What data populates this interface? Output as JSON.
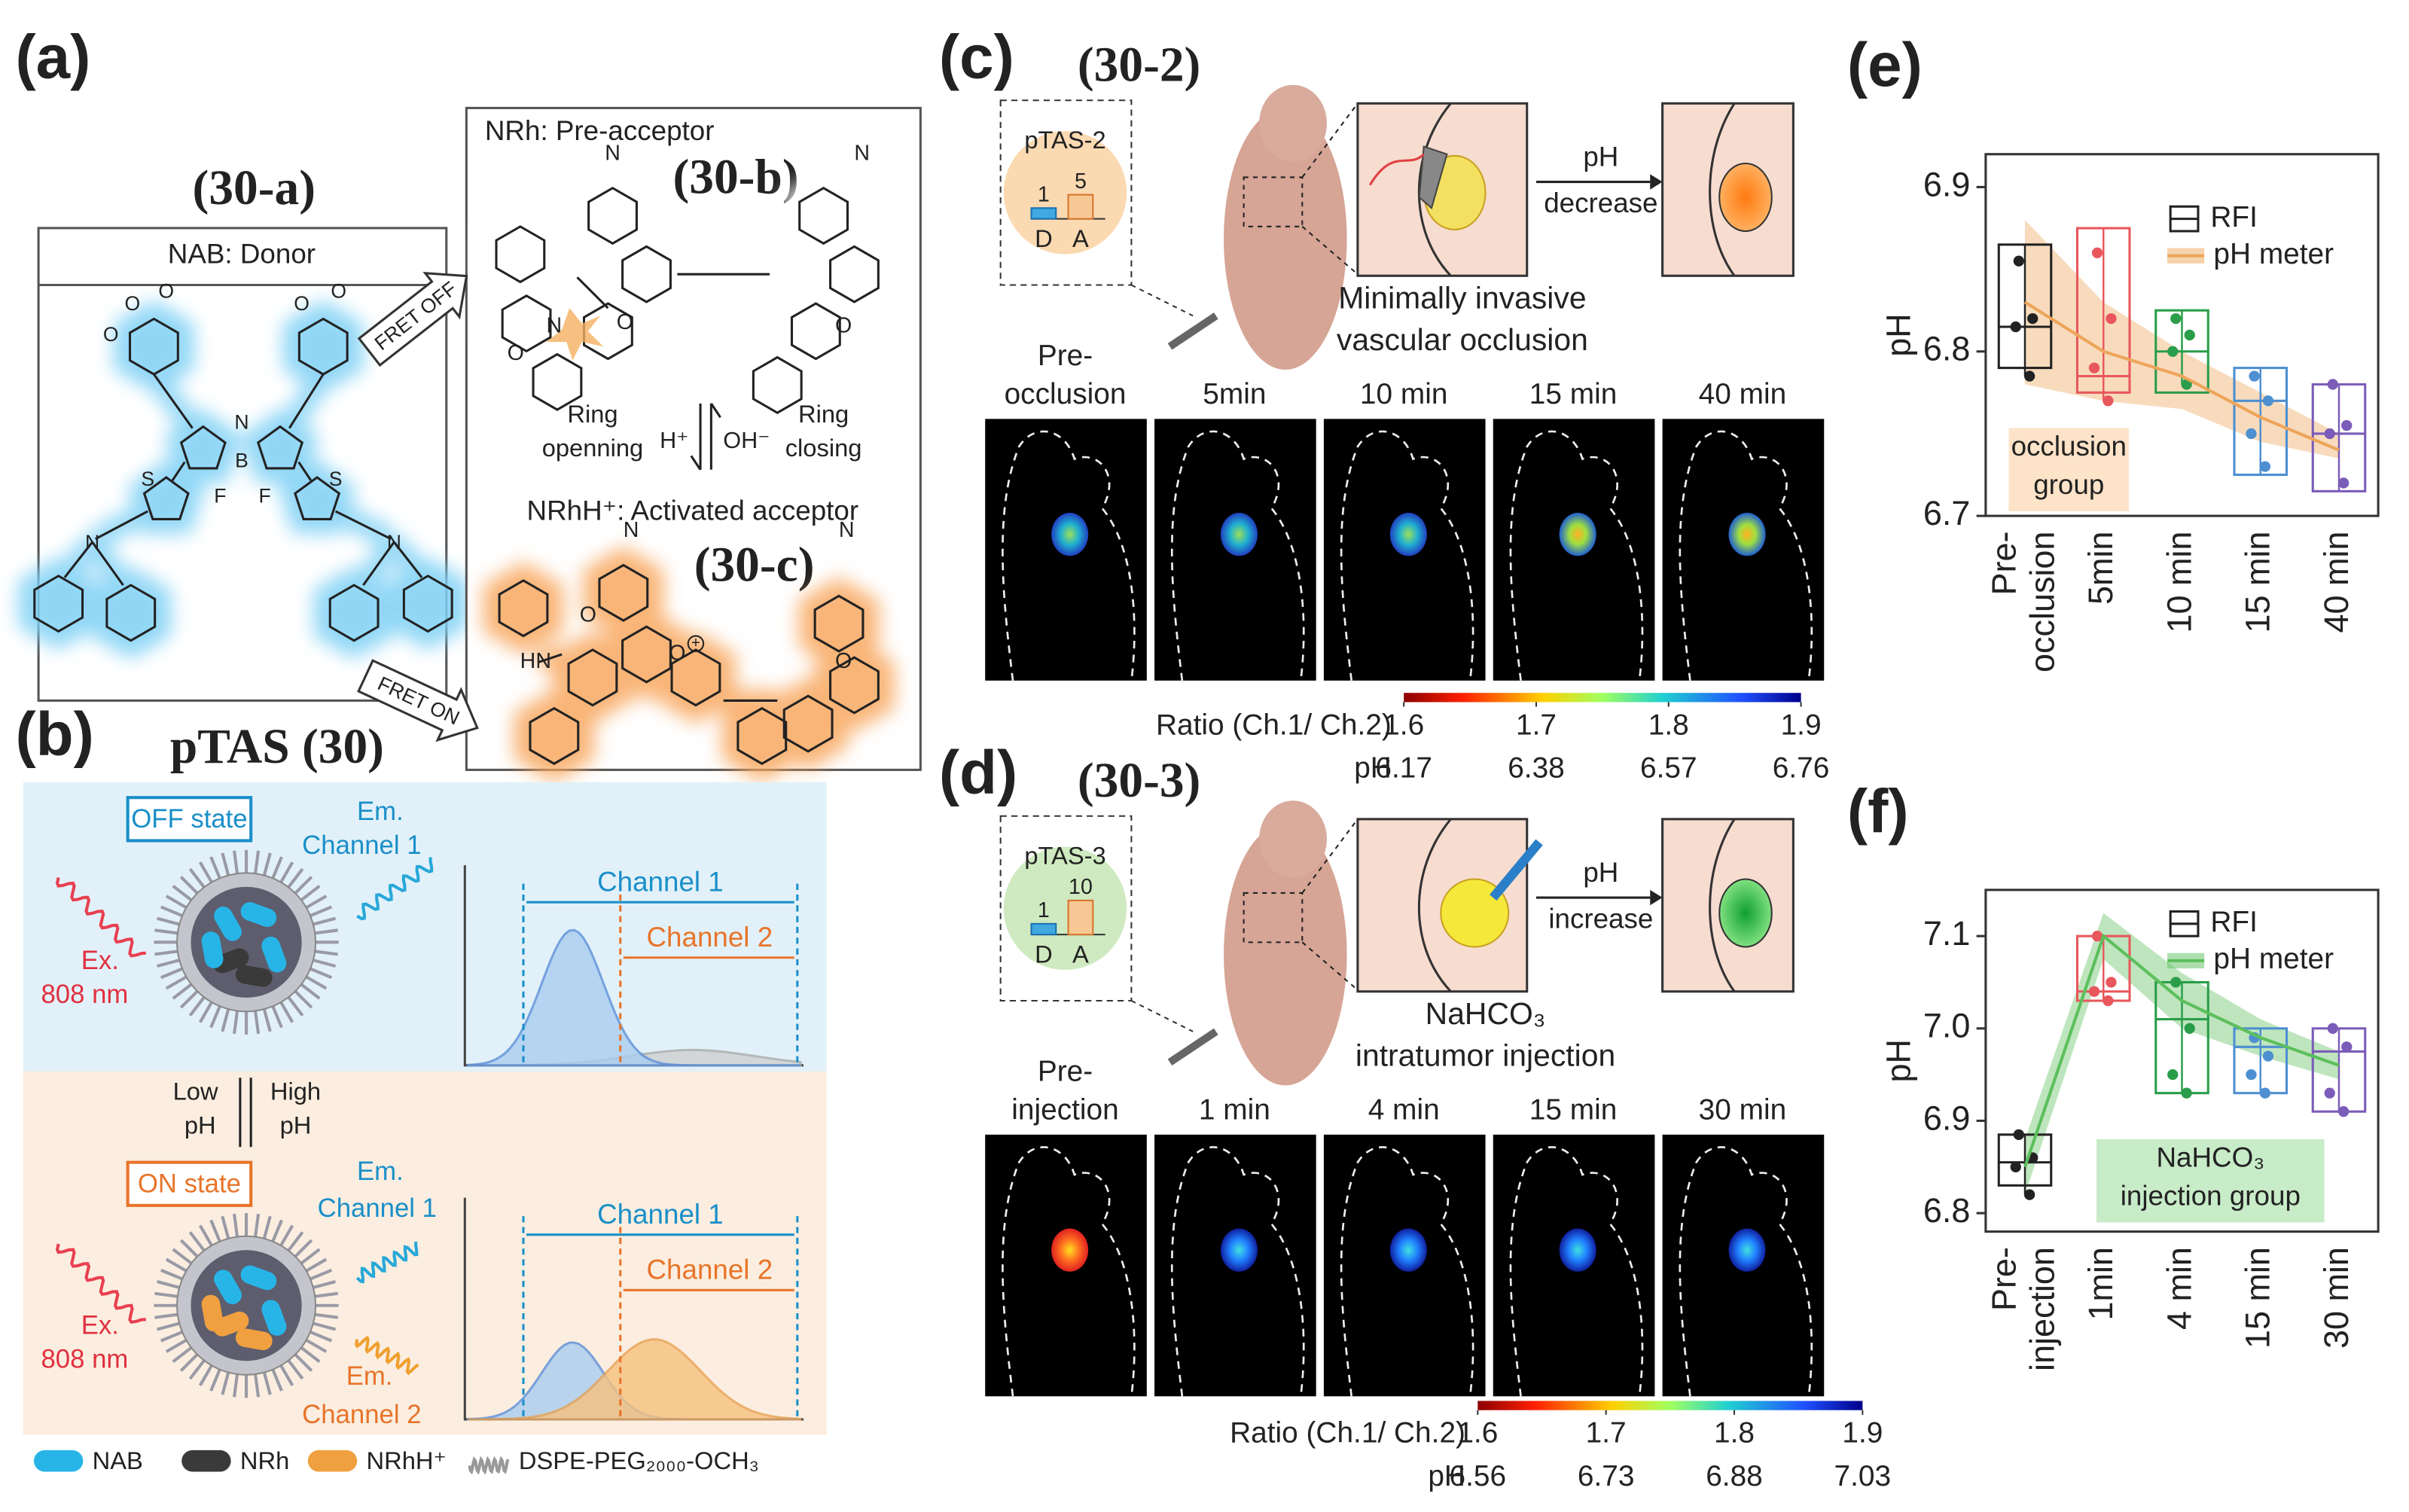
{
  "panel_a": {
    "label": "(a)",
    "tag": "(30-a)",
    "donor_title": "NAB: Donor",
    "donor_atoms": [
      "N",
      "B",
      "F",
      "F",
      "S",
      "S",
      "N",
      "N",
      "O",
      "O",
      "O",
      "O",
      "O",
      "O"
    ],
    "acceptor_title": "NRh: Pre-acceptor",
    "tag_b": "(30-b)",
    "pre_atoms": [
      "N",
      "N",
      "O",
      "O",
      "N",
      "O"
    ],
    "fret_off": "FRET OFF",
    "ring_opening": [
      "Ring",
      "openning"
    ],
    "acid": "H⁺",
    "base": "OH⁻",
    "ring_closing": [
      "Ring",
      "closing"
    ],
    "activated_title": "NRhH⁺: Activated acceptor",
    "tag_c": "(30-c)",
    "act_atoms": [
      "N",
      "HN",
      "O",
      "O",
      "N",
      "O"
    ],
    "charge": "+",
    "fret_on": "FRET ON"
  },
  "panel_b": {
    "label": "(b)",
    "title": "pTAS (30)",
    "off_state": "OFF state",
    "on_state": "ON state",
    "em1": [
      "Em.",
      "Channel 1"
    ],
    "em2": [
      "Em.",
      "Channel 2"
    ],
    "ex": [
      "Ex.",
      "808 nm"
    ],
    "low": [
      "Low",
      "pH"
    ],
    "high": [
      "High",
      "pH"
    ],
    "channel_1": "Channel 1",
    "channel_2": "Channel 2",
    "legend": [
      "NAB",
      "NRh",
      "NRhH⁺",
      "DSPE-PEG₂₀₀₀-OCH₃"
    ]
  },
  "panel_c": {
    "label": "(c)",
    "tag": "(30-2)",
    "probe": "pTAS-2",
    "ratio": [
      {
        "name": "D",
        "value": 1
      },
      {
        "name": "A",
        "value": 5
      }
    ],
    "arrow": [
      "pH",
      "decrease"
    ],
    "caption": [
      "Minimally invasive",
      "vascular occlusion"
    ],
    "frames": [
      [
        "Pre-",
        "occlusion"
      ],
      [
        "5min"
      ],
      [
        "10 min"
      ],
      [
        "15 min"
      ],
      [
        "40 min"
      ]
    ],
    "colorbar": {
      "title": "Ratio (Ch.1/ Ch.2)",
      "lim": [
        1.6,
        1.9
      ],
      "ticks": [
        1.6,
        1.7,
        1.8,
        1.9
      ],
      "ph_label": "pH",
      "ph": [
        6.17,
        6.38,
        6.57,
        6.76
      ]
    }
  },
  "panel_d": {
    "label": "(d)",
    "tag": "(30-3)",
    "probe": "pTAS-3",
    "ratio": [
      {
        "name": "D",
        "value": 1
      },
      {
        "name": "A",
        "value": 10
      }
    ],
    "arrow": [
      "pH",
      "increase"
    ],
    "caption": [
      "NaHCO₃",
      "intratumor injection"
    ],
    "frames": [
      [
        "Pre-",
        "injection"
      ],
      [
        "1 min"
      ],
      [
        "4 min"
      ],
      [
        "15 min"
      ],
      [
        "30 min"
      ]
    ],
    "colorbar": {
      "title": "Ratio (Ch.1/ Ch.2)",
      "lim": [
        1.6,
        1.9
      ],
      "ticks": [
        1.6,
        1.7,
        1.8,
        1.9
      ],
      "ph_label": "pH",
      "ph": [
        6.56,
        6.73,
        6.88,
        7.03
      ]
    }
  },
  "chart_data": [
    {
      "type": "box",
      "panel_label": "(e)",
      "y_label": "pH",
      "categories": [
        [
          "Pre-",
          "occlusion"
        ],
        [
          "5min"
        ],
        [
          "10 min"
        ],
        [
          "15 min"
        ],
        [
          "40 min"
        ]
      ],
      "ylim": [
        6.7,
        6.92
      ],
      "yticks": [
        6.7,
        6.8,
        6.9
      ],
      "series": [
        {
          "name": "RFI",
          "color": "#222222",
          "box_colors": [
            "#222222",
            "#e8575c",
            "#2a9d4a",
            "#4d8fd1",
            "#7b5cb8"
          ],
          "min": [
            6.785,
            6.77,
            6.78,
            6.725,
            6.715
          ],
          "q1": [
            6.79,
            6.775,
            6.775,
            6.725,
            6.715
          ],
          "median": [
            6.815,
            6.785,
            6.8,
            6.77,
            6.75
          ],
          "q3": [
            6.865,
            6.875,
            6.825,
            6.79,
            6.78
          ],
          "max": [
            6.865,
            6.875,
            6.825,
            6.79,
            6.78
          ],
          "points": [
            [
              6.855,
              6.82,
              6.815,
              6.785
            ],
            [
              6.86,
              6.82,
              6.79,
              6.77
            ],
            [
              6.82,
              6.81,
              6.8,
              6.78
            ],
            [
              6.785,
              6.77,
              6.75,
              6.73
            ],
            [
              6.78,
              6.755,
              6.75,
              6.72
            ]
          ]
        },
        {
          "name": "pH meter",
          "color": "#eda55a",
          "values": [
            6.83,
            6.8,
            6.785,
            6.76,
            6.74
          ],
          "band_low": [
            6.78,
            6.77,
            6.765,
            6.745,
            6.735
          ],
          "band_high": [
            6.88,
            6.83,
            6.8,
            6.775,
            6.75
          ]
        }
      ],
      "annotation": [
        "occlusion",
        "group"
      ],
      "annotation_color": "#fde3c8"
    },
    {
      "type": "box",
      "panel_label": "(f)",
      "y_label": "pH",
      "categories": [
        [
          "Pre-",
          "injection"
        ],
        [
          "1min"
        ],
        [
          "4 min"
        ],
        [
          "15 min"
        ],
        [
          "30 min"
        ]
      ],
      "ylim": [
        6.78,
        7.15
      ],
      "yticks": [
        6.8,
        6.9,
        {
          "value": 7,
          "label": "7.0"
        },
        7.1
      ],
      "series": [
        {
          "name": "RFI",
          "color": "#222222",
          "box_colors": [
            "#222222",
            "#e8575c",
            "#2a9d4a",
            "#4d8fd1",
            "#7b5cb8"
          ],
          "min": [
            6.82,
            7.03,
            6.93,
            6.93,
            6.91
          ],
          "q1": [
            6.83,
            7.03,
            6.93,
            6.93,
            6.91
          ],
          "median": [
            6.855,
            7.04,
            7.01,
            6.98,
            6.975
          ],
          "q3": [
            6.885,
            7.1,
            7.05,
            7.0,
            7.0
          ],
          "max": [
            6.885,
            7.1,
            7.05,
            7.0,
            7.0
          ],
          "points": [
            [
              6.885,
              6.86,
              6.85,
              6.82
            ],
            [
              7.1,
              7.05,
              7.04,
              7.03
            ],
            [
              7.05,
              7.0,
              6.95,
              6.93
            ],
            [
              6.99,
              6.97,
              6.95,
              6.93
            ],
            [
              7.0,
              6.98,
              6.93,
              6.91
            ]
          ]
        },
        {
          "name": "pH meter",
          "color": "#5cbf5c",
          "values": [
            6.85,
            7.1,
            7.03,
            6.99,
            6.96
          ],
          "band_low": [
            6.82,
            7.075,
            7.0,
            6.97,
            6.945
          ],
          "band_high": [
            6.88,
            7.125,
            7.06,
            7.01,
            6.975
          ]
        }
      ],
      "annotation": [
        "NaHCO₃",
        "injection group"
      ],
      "annotation_color": "#c8ebc8"
    }
  ]
}
